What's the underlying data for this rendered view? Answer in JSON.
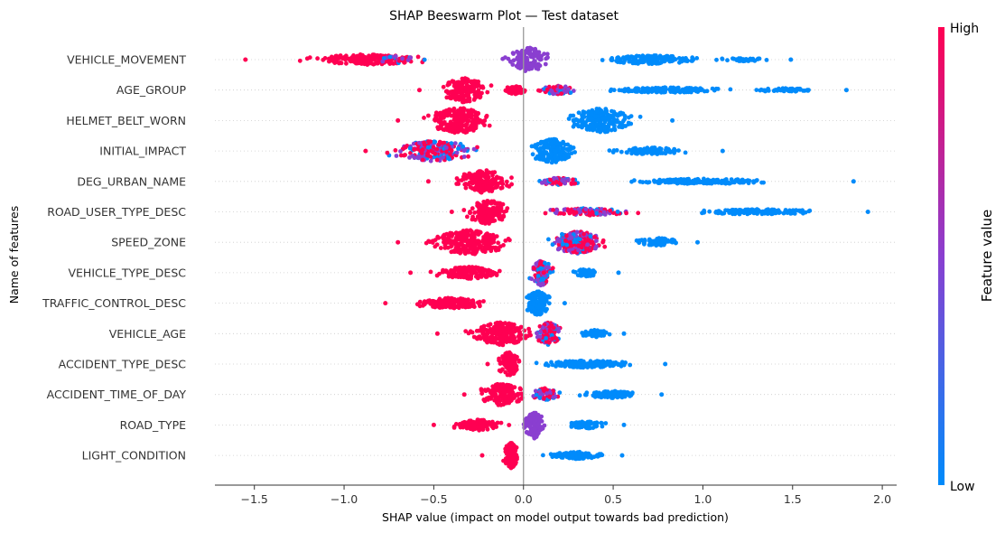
{
  "chart_data": {
    "type": "scatter",
    "subtype": "beeswarm",
    "title": "SHAP Beeswarm Plot — Test dataset",
    "xlabel": "SHAP value (impact on model output towards bad prediction)",
    "ylabel": "Name of features",
    "xlim": [
      -1.72,
      2.08
    ],
    "xticks": [
      -1.5,
      -1.0,
      -0.5,
      0.0,
      0.5,
      1.0,
      1.5,
      2.0
    ],
    "xtick_labels": [
      "−1.5",
      "−1.0",
      "−0.5",
      "0.0",
      "0.5",
      "1.0",
      "1.5",
      "2.0"
    ],
    "grid": "horizontal dotted",
    "colorbar": {
      "title": "Feature value",
      "high_label": "High",
      "low_label": "Low",
      "high_color": "#ff0052",
      "mid_color": "#8a3fd0",
      "low_color": "#008bfb"
    },
    "features": [
      {
        "name": "VEHICLE_MOVEMENT",
        "min": -1.55,
        "max": 1.49,
        "clusters": [
          {
            "center": -0.88,
            "spread": 0.55,
            "height": 6,
            "count": 170,
            "color": "high"
          },
          {
            "center": -0.7,
            "spread": 0.2,
            "height": 4,
            "count": 30,
            "color": "mixed"
          },
          {
            "center": 0.03,
            "spread": 0.2,
            "height": 14,
            "count": 120,
            "color": "mid"
          },
          {
            "center": 0.7,
            "spread": 0.45,
            "height": 5,
            "count": 150,
            "color": "low"
          },
          {
            "center": 1.2,
            "spread": 0.25,
            "height": 2,
            "count": 40,
            "color": "low"
          }
        ]
      },
      {
        "name": "AGE_GROUP",
        "min": -0.58,
        "max": 1.8,
        "clusters": [
          {
            "center": -0.33,
            "spread": 0.22,
            "height": 14,
            "count": 160,
            "color": "high"
          },
          {
            "center": -0.05,
            "spread": 0.1,
            "height": 5,
            "count": 40,
            "color": "high"
          },
          {
            "center": 0.2,
            "spread": 0.18,
            "height": 5,
            "count": 60,
            "color": "mixed"
          },
          {
            "center": 0.8,
            "spread": 0.5,
            "height": 3,
            "count": 150,
            "color": "low"
          },
          {
            "center": 1.45,
            "spread": 0.3,
            "height": 2,
            "count": 60,
            "color": "low"
          }
        ]
      },
      {
        "name": "HELMET_BELT_WORN",
        "min": -0.7,
        "max": 0.83,
        "clusters": [
          {
            "center": -0.36,
            "spread": 0.28,
            "height": 15,
            "count": 220,
            "color": "high"
          },
          {
            "center": 0.43,
            "spread": 0.3,
            "height": 14,
            "count": 220,
            "color": "low"
          }
        ]
      },
      {
        "name": "INITIAL_IMPACT",
        "min": -0.88,
        "max": 1.11,
        "clusters": [
          {
            "center": -0.5,
            "spread": 0.38,
            "height": 12,
            "count": 220,
            "color": "mixed"
          },
          {
            "center": 0.16,
            "spread": 0.22,
            "height": 14,
            "count": 170,
            "color": "low"
          },
          {
            "center": 0.7,
            "spread": 0.35,
            "height": 4,
            "count": 100,
            "color": "low"
          }
        ]
      },
      {
        "name": "DEG_URBAN_NAME",
        "min": -0.53,
        "max": 1.84,
        "clusters": [
          {
            "center": -0.22,
            "spread": 0.25,
            "height": 13,
            "count": 170,
            "color": "high"
          },
          {
            "center": 0.2,
            "spread": 0.22,
            "height": 4,
            "count": 60,
            "color": "mixed"
          },
          {
            "center": 1.0,
            "spread": 0.65,
            "height": 3,
            "count": 180,
            "color": "low"
          }
        ]
      },
      {
        "name": "ROAD_USER_TYPE_DESC",
        "min": -0.4,
        "max": 1.92,
        "clusters": [
          {
            "center": -0.2,
            "spread": 0.2,
            "height": 14,
            "count": 160,
            "color": "high"
          },
          {
            "center": 0.35,
            "spread": 0.4,
            "height": 4,
            "count": 110,
            "color": "mixed"
          },
          {
            "center": 1.3,
            "spread": 0.55,
            "height": 3,
            "count": 140,
            "color": "low"
          }
        ]
      },
      {
        "name": "SPEED_ZONE",
        "min": -0.7,
        "max": 0.97,
        "clusters": [
          {
            "center": -0.3,
            "spread": 0.38,
            "height": 14,
            "count": 260,
            "color": "high"
          },
          {
            "center": 0.3,
            "spread": 0.25,
            "height": 13,
            "count": 220,
            "color": "mixed"
          },
          {
            "center": 0.75,
            "spread": 0.2,
            "height": 5,
            "count": 60,
            "color": "low"
          }
        ]
      },
      {
        "name": "VEHICLE_TYPE_DESC",
        "min": -0.63,
        "max": 0.53,
        "clusters": [
          {
            "center": -0.3,
            "spread": 0.3,
            "height": 7,
            "count": 150,
            "color": "high"
          },
          {
            "center": 0.1,
            "spread": 0.1,
            "height": 15,
            "count": 120,
            "color": "mixed"
          },
          {
            "center": 0.35,
            "spread": 0.17,
            "height": 4,
            "count": 50,
            "color": "low"
          }
        ]
      },
      {
        "name": "TRAFFIC_CONTROL_DESC",
        "min": -0.77,
        "max": 0.23,
        "clusters": [
          {
            "center": -0.4,
            "spread": 0.35,
            "height": 6,
            "count": 150,
            "color": "high"
          },
          {
            "center": 0.08,
            "spread": 0.12,
            "height": 14,
            "count": 130,
            "color": "low"
          }
        ]
      },
      {
        "name": "VEHICLE_AGE",
        "min": -0.48,
        "max": 0.56,
        "clusters": [
          {
            "center": -0.12,
            "spread": 0.3,
            "height": 13,
            "count": 200,
            "color": "high"
          },
          {
            "center": 0.14,
            "spread": 0.12,
            "height": 13,
            "count": 110,
            "color": "mixed"
          },
          {
            "center": 0.4,
            "spread": 0.15,
            "height": 4,
            "count": 50,
            "color": "low"
          }
        ]
      },
      {
        "name": "ACCIDENT_TYPE_DESC",
        "min": -0.2,
        "max": 0.79,
        "clusters": [
          {
            "center": -0.08,
            "spread": 0.1,
            "height": 14,
            "count": 100,
            "color": "high"
          },
          {
            "center": 0.35,
            "spread": 0.42,
            "height": 4,
            "count": 160,
            "color": "low"
          }
        ]
      },
      {
        "name": "ACCIDENT_TIME_OF_DAY",
        "min": -0.33,
        "max": 0.77,
        "clusters": [
          {
            "center": -0.12,
            "spread": 0.2,
            "height": 13,
            "count": 140,
            "color": "high"
          },
          {
            "center": 0.12,
            "spread": 0.12,
            "height": 7,
            "count": 70,
            "color": "mixed"
          },
          {
            "center": 0.5,
            "spread": 0.27,
            "height": 4,
            "count": 100,
            "color": "low"
          }
        ]
      },
      {
        "name": "ROAD_TYPE",
        "min": -0.5,
        "max": 0.56,
        "clusters": [
          {
            "center": -0.25,
            "spread": 0.25,
            "height": 6,
            "count": 130,
            "color": "high"
          },
          {
            "center": 0.06,
            "spread": 0.1,
            "height": 15,
            "count": 120,
            "color": "mid"
          },
          {
            "center": 0.35,
            "spread": 0.2,
            "height": 4,
            "count": 70,
            "color": "low"
          }
        ]
      },
      {
        "name": "LIGHT_CONDITION",
        "min": -0.23,
        "max": 0.55,
        "clusters": [
          {
            "center": -0.07,
            "spread": 0.07,
            "height": 15,
            "count": 100,
            "color": "high"
          },
          {
            "center": 0.3,
            "spread": 0.25,
            "height": 4,
            "count": 130,
            "color": "low"
          }
        ]
      }
    ]
  }
}
